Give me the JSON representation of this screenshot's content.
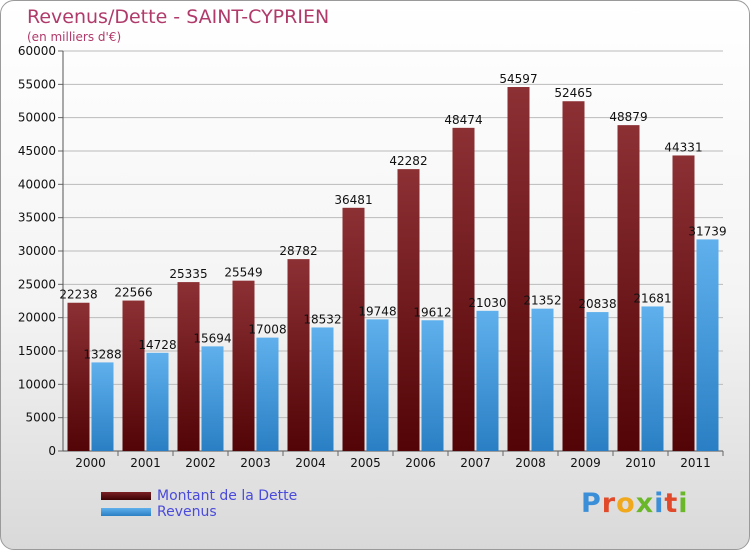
{
  "header": {
    "title": "Revenus/Dette - SAINT-CYPRIEN",
    "subtitle": "(en milliers d'€)"
  },
  "logo": {
    "text": "Proxiti",
    "colors": [
      "#3a8fd8",
      "#e04a2a",
      "#f0a81c",
      "#6ab82a",
      "#3a8fd8",
      "#e04a2a",
      "#6ab82a"
    ]
  },
  "colors": {
    "debt": "#6a1418",
    "revenue": "#3e95db",
    "axis_text": "#111111",
    "grid": "#bbbbbb"
  },
  "legend": {
    "items": [
      {
        "label": "Montant de la Dette",
        "color": "#5a0c0e"
      },
      {
        "label": "Revenus",
        "color": "#3e95db"
      }
    ]
  },
  "chart_data": {
    "type": "bar",
    "categories": [
      "2000",
      "2001",
      "2002",
      "2003",
      "2004",
      "2005",
      "2006",
      "2007",
      "2008",
      "2009",
      "2010",
      "2011"
    ],
    "series": [
      {
        "name": "Montant de la Dette",
        "values": [
          22238,
          22566,
          25335,
          25549,
          28782,
          36481,
          42282,
          48474,
          54597,
          52465,
          48879,
          44331
        ]
      },
      {
        "name": "Revenus",
        "values": [
          13288,
          14728,
          15694,
          17008,
          18532,
          19748,
          19612,
          21030,
          21352,
          20838,
          21681,
          31739
        ]
      }
    ],
    "ylim": [
      0,
      60000
    ],
    "yticks": [
      0,
      5000,
      10000,
      15000,
      20000,
      25000,
      30000,
      35000,
      40000,
      45000,
      50000,
      55000,
      60000
    ],
    "grid": true,
    "legend_position": "bottom-left"
  }
}
